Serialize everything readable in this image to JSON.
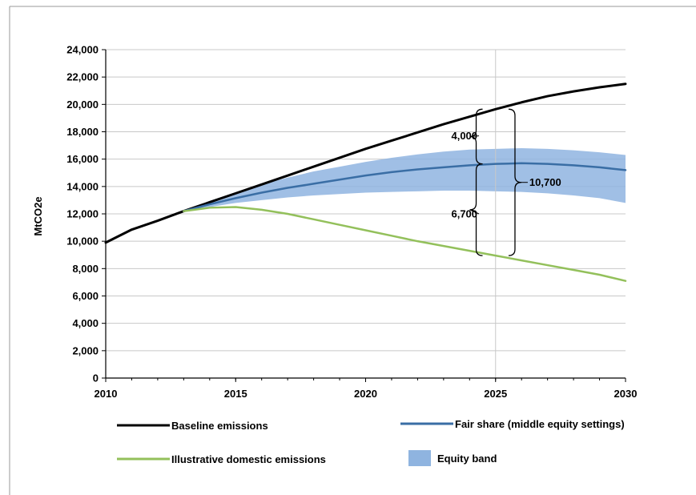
{
  "chart_data": {
    "type": "line",
    "title": "",
    "xlabel": "",
    "ylabel": "MtCO2e",
    "xlim": [
      2010,
      2030
    ],
    "ylim": [
      0,
      24000
    ],
    "x_ticks": [
      "2010",
      "2015",
      "2020",
      "2025",
      "2030"
    ],
    "y_ticks": [
      "0",
      "2,000",
      "4,000",
      "6,000",
      "8,000",
      "10,000",
      "12,000",
      "14,000",
      "16,000",
      "18,000",
      "20,000",
      "22,000",
      "24,000"
    ],
    "grid": "horizontal",
    "reference_line_x": 2025,
    "legend_position": "bottom",
    "series": [
      {
        "name": "Baseline emissions",
        "color": "#000000",
        "x": [
          2010,
          2011,
          2012,
          2013,
          2014,
          2015,
          2016,
          2017,
          2018,
          2019,
          2020,
          2021,
          2022,
          2023,
          2024,
          2025,
          2026,
          2027,
          2028,
          2029,
          2030
        ],
        "values": [
          9900,
          10850,
          11500,
          12200,
          12850,
          13500,
          14150,
          14800,
          15450,
          16100,
          16750,
          17350,
          17950,
          18550,
          19100,
          19650,
          20150,
          20600,
          20950,
          21250,
          21500
        ]
      },
      {
        "name": "Fair share (middle equity settings)",
        "color": "#3a6ea5",
        "x": [
          2013,
          2014,
          2015,
          2016,
          2017,
          2018,
          2019,
          2020,
          2021,
          2022,
          2023,
          2024,
          2025,
          2026,
          2027,
          2028,
          2029,
          2030
        ],
        "values": [
          12200,
          12700,
          13150,
          13550,
          13900,
          14200,
          14500,
          14800,
          15050,
          15250,
          15400,
          15550,
          15650,
          15700,
          15650,
          15550,
          15400,
          15200
        ]
      },
      {
        "name": "Illustrative domestic emissions",
        "color": "#93c05b",
        "x": [
          2013,
          2014,
          2015,
          2016,
          2017,
          2018,
          2019,
          2020,
          2021,
          2022,
          2023,
          2024,
          2025,
          2026,
          2027,
          2028,
          2029,
          2030
        ],
        "values": [
          12200,
          12450,
          12500,
          12300,
          12000,
          11600,
          11200,
          10800,
          10400,
          10000,
          9650,
          9300,
          8950,
          8600,
          8250,
          7900,
          7550,
          7100
        ]
      }
    ],
    "band": {
      "name": "Equity band",
      "color": "#8fb4e0",
      "x": [
        2013,
        2014,
        2015,
        2016,
        2017,
        2018,
        2019,
        2020,
        2021,
        2022,
        2023,
        2024,
        2025,
        2026,
        2027,
        2028,
        2029,
        2030
      ],
      "upper": [
        12200,
        12950,
        13550,
        14150,
        14650,
        15100,
        15450,
        15800,
        16100,
        16350,
        16550,
        16700,
        16750,
        16800,
        16750,
        16650,
        16500,
        16300
      ],
      "lower": [
        12200,
        12500,
        12800,
        13000,
        13200,
        13350,
        13450,
        13550,
        13600,
        13650,
        13700,
        13700,
        13650,
        13600,
        13500,
        13350,
        13150,
        12800
      ]
    },
    "annotations": [
      {
        "text": "4,000",
        "x": 2024.3,
        "y": 17700,
        "anchor": "end"
      },
      {
        "text": "6,700",
        "x": 2024.3,
        "y": 12000,
        "anchor": "end"
      },
      {
        "text": "10,700",
        "x": 2026.3,
        "y": 14300,
        "anchor": "start"
      }
    ],
    "brackets": [
      {
        "side": "left",
        "x": 2024.5,
        "y_from": 15650,
        "y_to": 19650
      },
      {
        "side": "left",
        "x": 2024.5,
        "y_from": 8950,
        "y_to": 15650
      },
      {
        "side": "right",
        "x": 2025.5,
        "y_from": 8950,
        "y_to": 19650
      }
    ]
  },
  "legend": [
    {
      "label": "Baseline emissions",
      "kind": "line",
      "color": "#000000"
    },
    {
      "label": "Fair share (middle equity settings)",
      "kind": "line",
      "color": "#3a6ea5"
    },
    {
      "label": "Illustrative domestic emissions",
      "kind": "line",
      "color": "#93c05b"
    },
    {
      "label": "Equity band",
      "kind": "patch",
      "color": "#8fb4e0"
    }
  ]
}
